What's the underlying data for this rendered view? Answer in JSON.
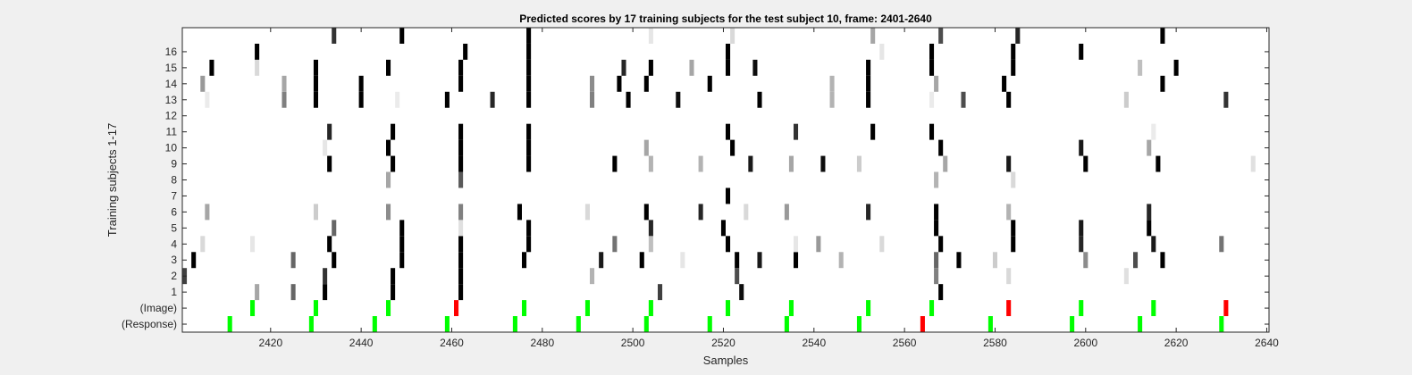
{
  "chart_data": {
    "type": "heatmap",
    "title": "Predicted scores by 17 training subjects for the test subject 10, frame: 2401-2640",
    "xlabel": "Samples",
    "ylabel": "Training subjects 1-17",
    "xlim": [
      2401,
      2640
    ],
    "x_ticks": [
      2420,
      2440,
      2460,
      2480,
      2500,
      2520,
      2540,
      2560,
      2580,
      2600,
      2620,
      2640
    ],
    "y_ticks": [
      "1",
      "2",
      "3",
      "4",
      "5",
      "6",
      "7",
      "8",
      "9",
      "10",
      "11",
      "12",
      "13",
      "14",
      "15",
      "16"
    ],
    "row_labels_bottom": [
      "(Response)",
      "(Image)"
    ],
    "colormap": "gray, darker = higher score",
    "colors": {
      "plot_background": "#ffffff",
      "figure_background": "#f0f0f0",
      "green_marker": "#00ff00",
      "red_marker": "#ff0000"
    },
    "response_markers": [
      {
        "x": 2411,
        "c": "green"
      },
      {
        "x": 2429,
        "c": "green"
      },
      {
        "x": 2443,
        "c": "green"
      },
      {
        "x": 2459,
        "c": "green"
      },
      {
        "x": 2474,
        "c": "green"
      },
      {
        "x": 2488,
        "c": "green"
      },
      {
        "x": 2503,
        "c": "green"
      },
      {
        "x": 2517,
        "c": "green"
      },
      {
        "x": 2534,
        "c": "green"
      },
      {
        "x": 2550,
        "c": "green"
      },
      {
        "x": 2564,
        "c": "red"
      },
      {
        "x": 2579,
        "c": "green"
      },
      {
        "x": 2597,
        "c": "green"
      },
      {
        "x": 2612,
        "c": "green"
      },
      {
        "x": 2630,
        "c": "green"
      }
    ],
    "image_markers": [
      {
        "x": 2416,
        "c": "green"
      },
      {
        "x": 2430,
        "c": "green"
      },
      {
        "x": 2446,
        "c": "green"
      },
      {
        "x": 2461,
        "c": "red"
      },
      {
        "x": 2476,
        "c": "green"
      },
      {
        "x": 2490,
        "c": "green"
      },
      {
        "x": 2504,
        "c": "green"
      },
      {
        "x": 2521,
        "c": "green"
      },
      {
        "x": 2535,
        "c": "green"
      },
      {
        "x": 2552,
        "c": "green"
      },
      {
        "x": 2566,
        "c": "green"
      },
      {
        "x": 2583,
        "c": "red"
      },
      {
        "x": 2599,
        "c": "green"
      },
      {
        "x": 2615,
        "c": "green"
      },
      {
        "x": 2631,
        "c": "red"
      }
    ],
    "subjects": [
      {
        "row": 1,
        "cells": [
          [
            2417,
            0.35
          ],
          [
            2425,
            0.6
          ],
          [
            2432,
            1.0
          ],
          [
            2447,
            1.0
          ],
          [
            2462,
            1.0
          ],
          [
            2506,
            0.75
          ],
          [
            2524,
            0.95
          ],
          [
            2568,
            1.0
          ]
        ]
      },
      {
        "row": 2,
        "cells": [
          [
            2401,
            0.75
          ],
          [
            2432,
            0.8
          ],
          [
            2447,
            1.0
          ],
          [
            2462,
            1.0
          ],
          [
            2491,
            0.3
          ],
          [
            2523,
            0.7
          ],
          [
            2567,
            0.5
          ],
          [
            2583,
            0.15
          ],
          [
            2609,
            0.12
          ]
        ]
      },
      {
        "row": 3,
        "cells": [
          [
            2403,
            1.0
          ],
          [
            2425,
            0.6
          ],
          [
            2434,
            1.0
          ],
          [
            2449,
            1.0
          ],
          [
            2462,
            1.0
          ],
          [
            2476,
            1.0
          ],
          [
            2493,
            0.9
          ],
          [
            2502,
            1.0
          ],
          [
            2511,
            0.1
          ],
          [
            2523,
            1.0
          ],
          [
            2528,
            0.9
          ],
          [
            2536,
            1.0
          ],
          [
            2546,
            0.3
          ],
          [
            2567,
            0.6
          ],
          [
            2572,
            1.0
          ],
          [
            2580,
            0.2
          ],
          [
            2600,
            0.45
          ],
          [
            2611,
            0.7
          ],
          [
            2617,
            1.0
          ]
        ]
      },
      {
        "row": 4,
        "cells": [
          [
            2405,
            0.15
          ],
          [
            2416,
            0.1
          ],
          [
            2433,
            1.0
          ],
          [
            2449,
            1.0
          ],
          [
            2462,
            1.0
          ],
          [
            2477,
            1.0
          ],
          [
            2496,
            0.55
          ],
          [
            2504,
            0.25
          ],
          [
            2521,
            1.0
          ],
          [
            2536,
            0.1
          ],
          [
            2541,
            0.4
          ],
          [
            2555,
            0.15
          ],
          [
            2568,
            1.0
          ],
          [
            2584,
            1.0
          ],
          [
            2599,
            0.85
          ],
          [
            2615,
            0.9
          ],
          [
            2630,
            0.55
          ]
        ]
      },
      {
        "row": 5,
        "cells": [
          [
            2434,
            0.6
          ],
          [
            2449,
            1.0
          ],
          [
            2462,
            0.12
          ],
          [
            2477,
            1.0
          ],
          [
            2504,
            0.85
          ],
          [
            2520,
            1.0
          ],
          [
            2567,
            1.0
          ],
          [
            2584,
            1.0
          ],
          [
            2599,
            0.9
          ],
          [
            2614,
            1.0
          ]
        ]
      },
      {
        "row": 6,
        "cells": [
          [
            2406,
            0.35
          ],
          [
            2430,
            0.2
          ],
          [
            2446,
            0.45
          ],
          [
            2462,
            0.5
          ],
          [
            2475,
            1.0
          ],
          [
            2490,
            0.15
          ],
          [
            2503,
            1.0
          ],
          [
            2515,
            0.85
          ],
          [
            2525,
            0.15
          ],
          [
            2534,
            0.4
          ],
          [
            2552,
            0.85
          ],
          [
            2567,
            1.0
          ],
          [
            2583,
            0.3
          ],
          [
            2614,
            0.85
          ]
        ]
      },
      {
        "row": 7,
        "cells": [
          [
            2521,
            1.0
          ]
        ]
      },
      {
        "row": 8,
        "cells": [
          [
            2446,
            0.35
          ],
          [
            2462,
            0.65
          ],
          [
            2567,
            0.3
          ],
          [
            2584,
            0.15
          ]
        ]
      },
      {
        "row": 9,
        "cells": [
          [
            2433,
            1.0
          ],
          [
            2447,
            1.0
          ],
          [
            2462,
            1.0
          ],
          [
            2477,
            1.0
          ],
          [
            2496,
            1.0
          ],
          [
            2504,
            0.3
          ],
          [
            2515,
            0.3
          ],
          [
            2526,
            0.9
          ],
          [
            2535,
            0.35
          ],
          [
            2542,
            0.95
          ],
          [
            2550,
            0.2
          ],
          [
            2569,
            0.35
          ],
          [
            2583,
            0.9
          ],
          [
            2600,
            1.0
          ],
          [
            2616,
            1.0
          ],
          [
            2637,
            0.12
          ]
        ]
      },
      {
        "row": 10,
        "cells": [
          [
            2432,
            0.1
          ],
          [
            2446,
            1.0
          ],
          [
            2462,
            1.0
          ],
          [
            2477,
            1.0
          ],
          [
            2503,
            0.35
          ],
          [
            2522,
            1.0
          ],
          [
            2568,
            1.0
          ],
          [
            2599,
            0.9
          ],
          [
            2614,
            0.35
          ]
        ]
      },
      {
        "row": 11,
        "cells": [
          [
            2433,
            0.85
          ],
          [
            2447,
            1.0
          ],
          [
            2462,
            1.0
          ],
          [
            2477,
            1.0
          ],
          [
            2521,
            1.0
          ],
          [
            2536,
            0.8
          ],
          [
            2553,
            1.0
          ],
          [
            2566,
            1.0
          ],
          [
            2615,
            0.08
          ]
        ]
      },
      {
        "row": 12,
        "cells": []
      },
      {
        "row": 13,
        "cells": [
          [
            2406,
            0.08
          ],
          [
            2423,
            0.5
          ],
          [
            2430,
            1.0
          ],
          [
            2440,
            1.0
          ],
          [
            2448,
            0.08
          ],
          [
            2459,
            1.0
          ],
          [
            2469,
            0.85
          ],
          [
            2477,
            1.0
          ],
          [
            2491,
            0.5
          ],
          [
            2499,
            1.0
          ],
          [
            2510,
            0.95
          ],
          [
            2528,
            1.0
          ],
          [
            2544,
            0.3
          ],
          [
            2552,
            1.0
          ],
          [
            2566,
            0.08
          ],
          [
            2573,
            0.7
          ],
          [
            2583,
            1.0
          ],
          [
            2609,
            0.2
          ],
          [
            2631,
            0.8
          ]
        ]
      },
      {
        "row": 14,
        "cells": [
          [
            2405,
            0.4
          ],
          [
            2423,
            0.35
          ],
          [
            2430,
            1.0
          ],
          [
            2440,
            1.0
          ],
          [
            2462,
            1.0
          ],
          [
            2477,
            1.0
          ],
          [
            2491,
            0.45
          ],
          [
            2497,
            1.0
          ],
          [
            2503,
            1.0
          ],
          [
            2517,
            1.0
          ],
          [
            2544,
            0.3
          ],
          [
            2552,
            1.0
          ],
          [
            2567,
            0.35
          ],
          [
            2582,
            1.0
          ],
          [
            2617,
            1.0
          ]
        ]
      },
      {
        "row": 15,
        "cells": [
          [
            2407,
            1.0
          ],
          [
            2417,
            0.15
          ],
          [
            2430,
            1.0
          ],
          [
            2446,
            1.0
          ],
          [
            2462,
            1.0
          ],
          [
            2477,
            1.0
          ],
          [
            2498,
            0.85
          ],
          [
            2504,
            1.0
          ],
          [
            2513,
            0.35
          ],
          [
            2521,
            1.0
          ],
          [
            2527,
            0.95
          ],
          [
            2552,
            1.0
          ],
          [
            2566,
            1.0
          ],
          [
            2584,
            1.0
          ],
          [
            2612,
            0.25
          ],
          [
            2620,
            1.0
          ]
        ]
      },
      {
        "row": 16,
        "cells": [
          [
            2417,
            1.0
          ],
          [
            2463,
            1.0
          ],
          [
            2477,
            1.0
          ],
          [
            2521,
            1.0
          ],
          [
            2555,
            0.1
          ],
          [
            2566,
            1.0
          ],
          [
            2584,
            1.0
          ],
          [
            2599,
            1.0
          ]
        ]
      },
      {
        "row": 17,
        "cells": [
          [
            2434,
            0.8
          ],
          [
            2449,
            1.0
          ],
          [
            2477,
            1.0
          ],
          [
            2504,
            0.1
          ],
          [
            2522,
            0.15
          ],
          [
            2553,
            0.35
          ],
          [
            2568,
            0.7
          ],
          [
            2585,
            0.85
          ],
          [
            2617,
            1.0
          ]
        ]
      }
    ]
  }
}
